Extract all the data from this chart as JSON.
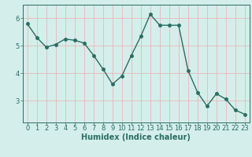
{
  "x": [
    0,
    1,
    2,
    3,
    4,
    5,
    6,
    7,
    8,
    9,
    10,
    11,
    12,
    13,
    14,
    15,
    16,
    17,
    18,
    19,
    20,
    21,
    22,
    23
  ],
  "y": [
    5.8,
    5.3,
    4.95,
    5.05,
    5.25,
    5.2,
    5.1,
    4.65,
    4.15,
    3.6,
    3.9,
    4.65,
    5.35,
    6.15,
    5.75,
    5.75,
    5.75,
    4.1,
    3.3,
    2.8,
    3.25,
    3.05,
    2.65,
    2.5
  ],
  "line_color": "#2a6e62",
  "marker": "o",
  "markersize": 2.5,
  "linewidth": 1.0,
  "bg_color": "#d4eeeb",
  "grid_color": "#e8b8b8",
  "xlabel": "Humidex (Indice chaleur)",
  "xlabel_fontsize": 7,
  "tick_fontsize": 6,
  "ylim": [
    2.2,
    6.5
  ],
  "xlim": [
    -0.5,
    23.5
  ],
  "yticks": [
    3,
    4,
    5,
    6
  ],
  "xticks": [
    0,
    1,
    2,
    3,
    4,
    5,
    6,
    7,
    8,
    9,
    10,
    11,
    12,
    13,
    14,
    15,
    16,
    17,
    18,
    19,
    20,
    21,
    22,
    23
  ]
}
